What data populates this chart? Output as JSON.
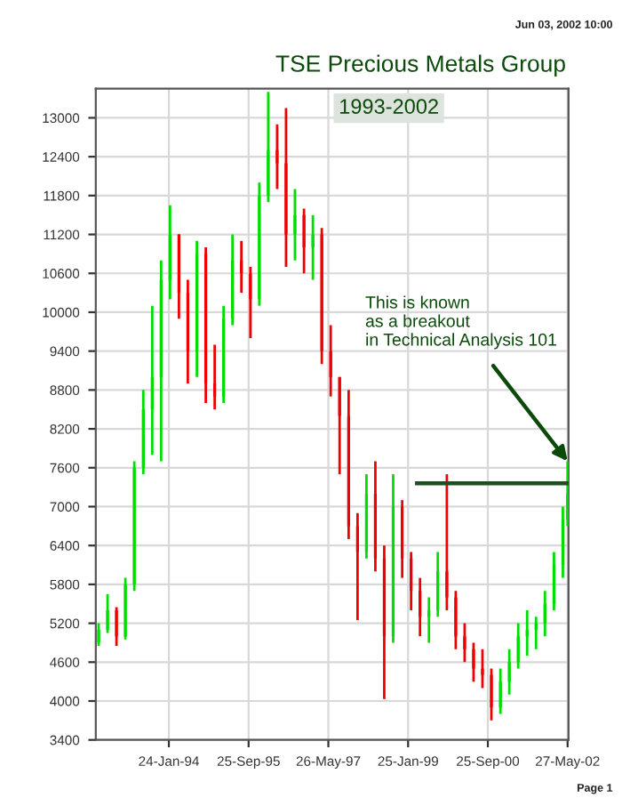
{
  "chart_data": {
    "type": "candlestick",
    "title": "TSE Precious Metals Group",
    "subtitle": "1993-2002",
    "annotations": [
      {
        "text": "This is known\nas a breakout\nin Technical Analysis 101",
        "x": "2002-05-27",
        "y": 7700
      },
      "Jun 03, 2002 10:00",
      "Page 1"
    ],
    "x": [
      "1992-08-06",
      "1992-10-13",
      "1992-12-20",
      "1993-02-26",
      "1993-05-05",
      "1993-07-13",
      "1993-09-19",
      "1993-11-26",
      "1994-02-02",
      "1994-04-11",
      "1994-06-18",
      "1994-08-26",
      "1994-11-02",
      "1995-01-09",
      "1995-03-18",
      "1995-05-25",
      "1995-08-01",
      "1995-10-09",
      "1995-12-16",
      "1996-02-22",
      "1996-04-30",
      "1996-07-07",
      "1996-09-13",
      "1996-11-21",
      "1997-01-28",
      "1997-04-06",
      "1997-06-13",
      "1997-08-20",
      "1997-10-28",
      "1998-01-04",
      "1998-03-13",
      "1998-05-20",
      "1998-07-27",
      "1998-10-03",
      "1998-12-11",
      "1999-02-17",
      "1999-04-26",
      "1999-07-03",
      "1999-09-09",
      "1999-11-17",
      "2000-01-24",
      "2000-04-01",
      "2000-06-08",
      "2000-08-15",
      "2000-10-22",
      "2000-12-30",
      "2001-03-08",
      "2001-05-15",
      "2001-07-22",
      "2001-09-28",
      "2001-12-05",
      "2002-02-12",
      "2002-04-21",
      "2002-05-27"
    ],
    "ohlc": [
      [
        4900,
        5200,
        4850,
        5100
      ],
      [
        5100,
        5650,
        5050,
        5400
      ],
      [
        5400,
        5450,
        4850,
        5000
      ],
      [
        5000,
        5900,
        4950,
        5800
      ],
      [
        5800,
        7700,
        5700,
        7600
      ],
      [
        7600,
        8800,
        7500,
        8500
      ],
      [
        8500,
        10100,
        7800,
        9000
      ],
      [
        9000,
        10800,
        7700,
        10500
      ],
      [
        10500,
        11650,
        10200,
        11200
      ],
      [
        11200,
        11200,
        9900,
        10300
      ],
      [
        10300,
        10500,
        8900,
        9400
      ],
      [
        9400,
        11100,
        9000,
        10900
      ],
      [
        10900,
        11000,
        8600,
        8900
      ],
      [
        8900,
        9500,
        8500,
        8700
      ],
      [
        8700,
        10100,
        8600,
        9900
      ],
      [
        9900,
        11200,
        9800,
        10800
      ],
      [
        10800,
        11100,
        10300,
        10600
      ],
      [
        10600,
        10700,
        9600,
        10200
      ],
      [
        10200,
        12000,
        10100,
        11800
      ],
      [
        11800,
        13400,
        11700,
        12500
      ],
      [
        12500,
        12900,
        11900,
        12300
      ],
      [
        12300,
        13150,
        10700,
        11200
      ],
      [
        11200,
        11900,
        10800,
        11500
      ],
      [
        11500,
        11600,
        10600,
        11000
      ],
      [
        11000,
        11500,
        10500,
        11200
      ],
      [
        11200,
        11300,
        9200,
        9400
      ],
      [
        9400,
        9800,
        8700,
        9000
      ],
      [
        9000,
        9000,
        7500,
        8400
      ],
      [
        8400,
        8800,
        6500,
        6700
      ],
      [
        6700,
        6900,
        5250,
        6300
      ],
      [
        6300,
        7500,
        6200,
        7200
      ],
      [
        7200,
        7700,
        6000,
        6200
      ],
      [
        6200,
        6400,
        4030,
        5000
      ],
      [
        5000,
        7500,
        4900,
        7000
      ],
      [
        7000,
        7100,
        5900,
        6200
      ],
      [
        6200,
        6300,
        5400,
        5700
      ],
      [
        5700,
        5900,
        5000,
        5300
      ],
      [
        5300,
        5600,
        4900,
        5400
      ],
      [
        5400,
        6300,
        5300,
        6000
      ],
      [
        6000,
        7500,
        5400,
        5600
      ],
      [
        5600,
        5700,
        4800,
        5000
      ],
      [
        5000,
        5200,
        4600,
        4800
      ],
      [
        4800,
        4900,
        4300,
        4500
      ],
      [
        4500,
        4800,
        4200,
        4400
      ],
      [
        4400,
        4500,
        3700,
        3900
      ],
      [
        3900,
        4500,
        3800,
        4300
      ],
      [
        4300,
        4800,
        4100,
        4600
      ],
      [
        4600,
        5200,
        4500,
        5000
      ],
      [
        5000,
        5400,
        4700,
        5100
      ],
      [
        5100,
        5300,
        4800,
        5200
      ],
      [
        5200,
        5700,
        5000,
        5500
      ],
      [
        5500,
        6300,
        5400,
        6100
      ],
      [
        6100,
        7000,
        5900,
        6800
      ],
      [
        6800,
        7700,
        6700,
        7200
      ]
    ],
    "colors": [
      "#00dd00",
      "#00dd00",
      "#ee0000",
      "#00dd00",
      "#00dd00",
      "#00dd00",
      "#00dd00",
      "#00dd00",
      "#00dd00",
      "#ee0000",
      "#ee0000",
      "#00dd00",
      "#ee0000",
      "#ee0000",
      "#00dd00",
      "#00dd00",
      "#ee0000",
      "#ee0000",
      "#00dd00",
      "#00dd00",
      "#ee0000",
      "#ee0000",
      "#00dd00",
      "#ee0000",
      "#00dd00",
      "#ee0000",
      "#ee0000",
      "#ee0000",
      "#ee0000",
      "#ee0000",
      "#00dd00",
      "#ee0000",
      "#ee0000",
      "#00dd00",
      "#ee0000",
      "#ee0000",
      "#ee0000",
      "#00dd00",
      "#00dd00",
      "#ee0000",
      "#ee0000",
      "#ee0000",
      "#ee0000",
      "#ee0000",
      "#ee0000",
      "#00dd00",
      "#00dd00",
      "#00dd00",
      "#00dd00",
      "#00dd00",
      "#00dd00",
      "#00dd00",
      "#00dd00",
      "#00dd00"
    ],
    "series": [
      {
        "type": "line",
        "color": "#1f4f1f",
        "x": [
          "1999-04-03",
          "2002-06-03"
        ],
        "values": [
          7360,
          7360
        ]
      }
    ],
    "xlim": [
      "1992-07-15",
      "2002-06-03"
    ],
    "xticks": [
      {
        "value": "1994-01-24",
        "label": "24-Jan-94"
      },
      {
        "value": "1995-09-25",
        "label": "25-Sep-95"
      },
      {
        "value": "1997-05-26",
        "label": "26-May-97"
      },
      {
        "value": "1999-01-25",
        "label": "25-Jan-99"
      },
      {
        "value": "2000-09-25",
        "label": "25-Sep-00"
      },
      {
        "value": "2002-05-27",
        "label": "27-May-02"
      }
    ],
    "ylim": [
      3400,
      13450
    ],
    "yticks": [
      3400,
      4000,
      4600,
      5200,
      5800,
      6400,
      7000,
      7600,
      8200,
      8800,
      9400,
      10000,
      10600,
      11200,
      11800,
      12400,
      13000
    ],
    "grid": true
  }
}
